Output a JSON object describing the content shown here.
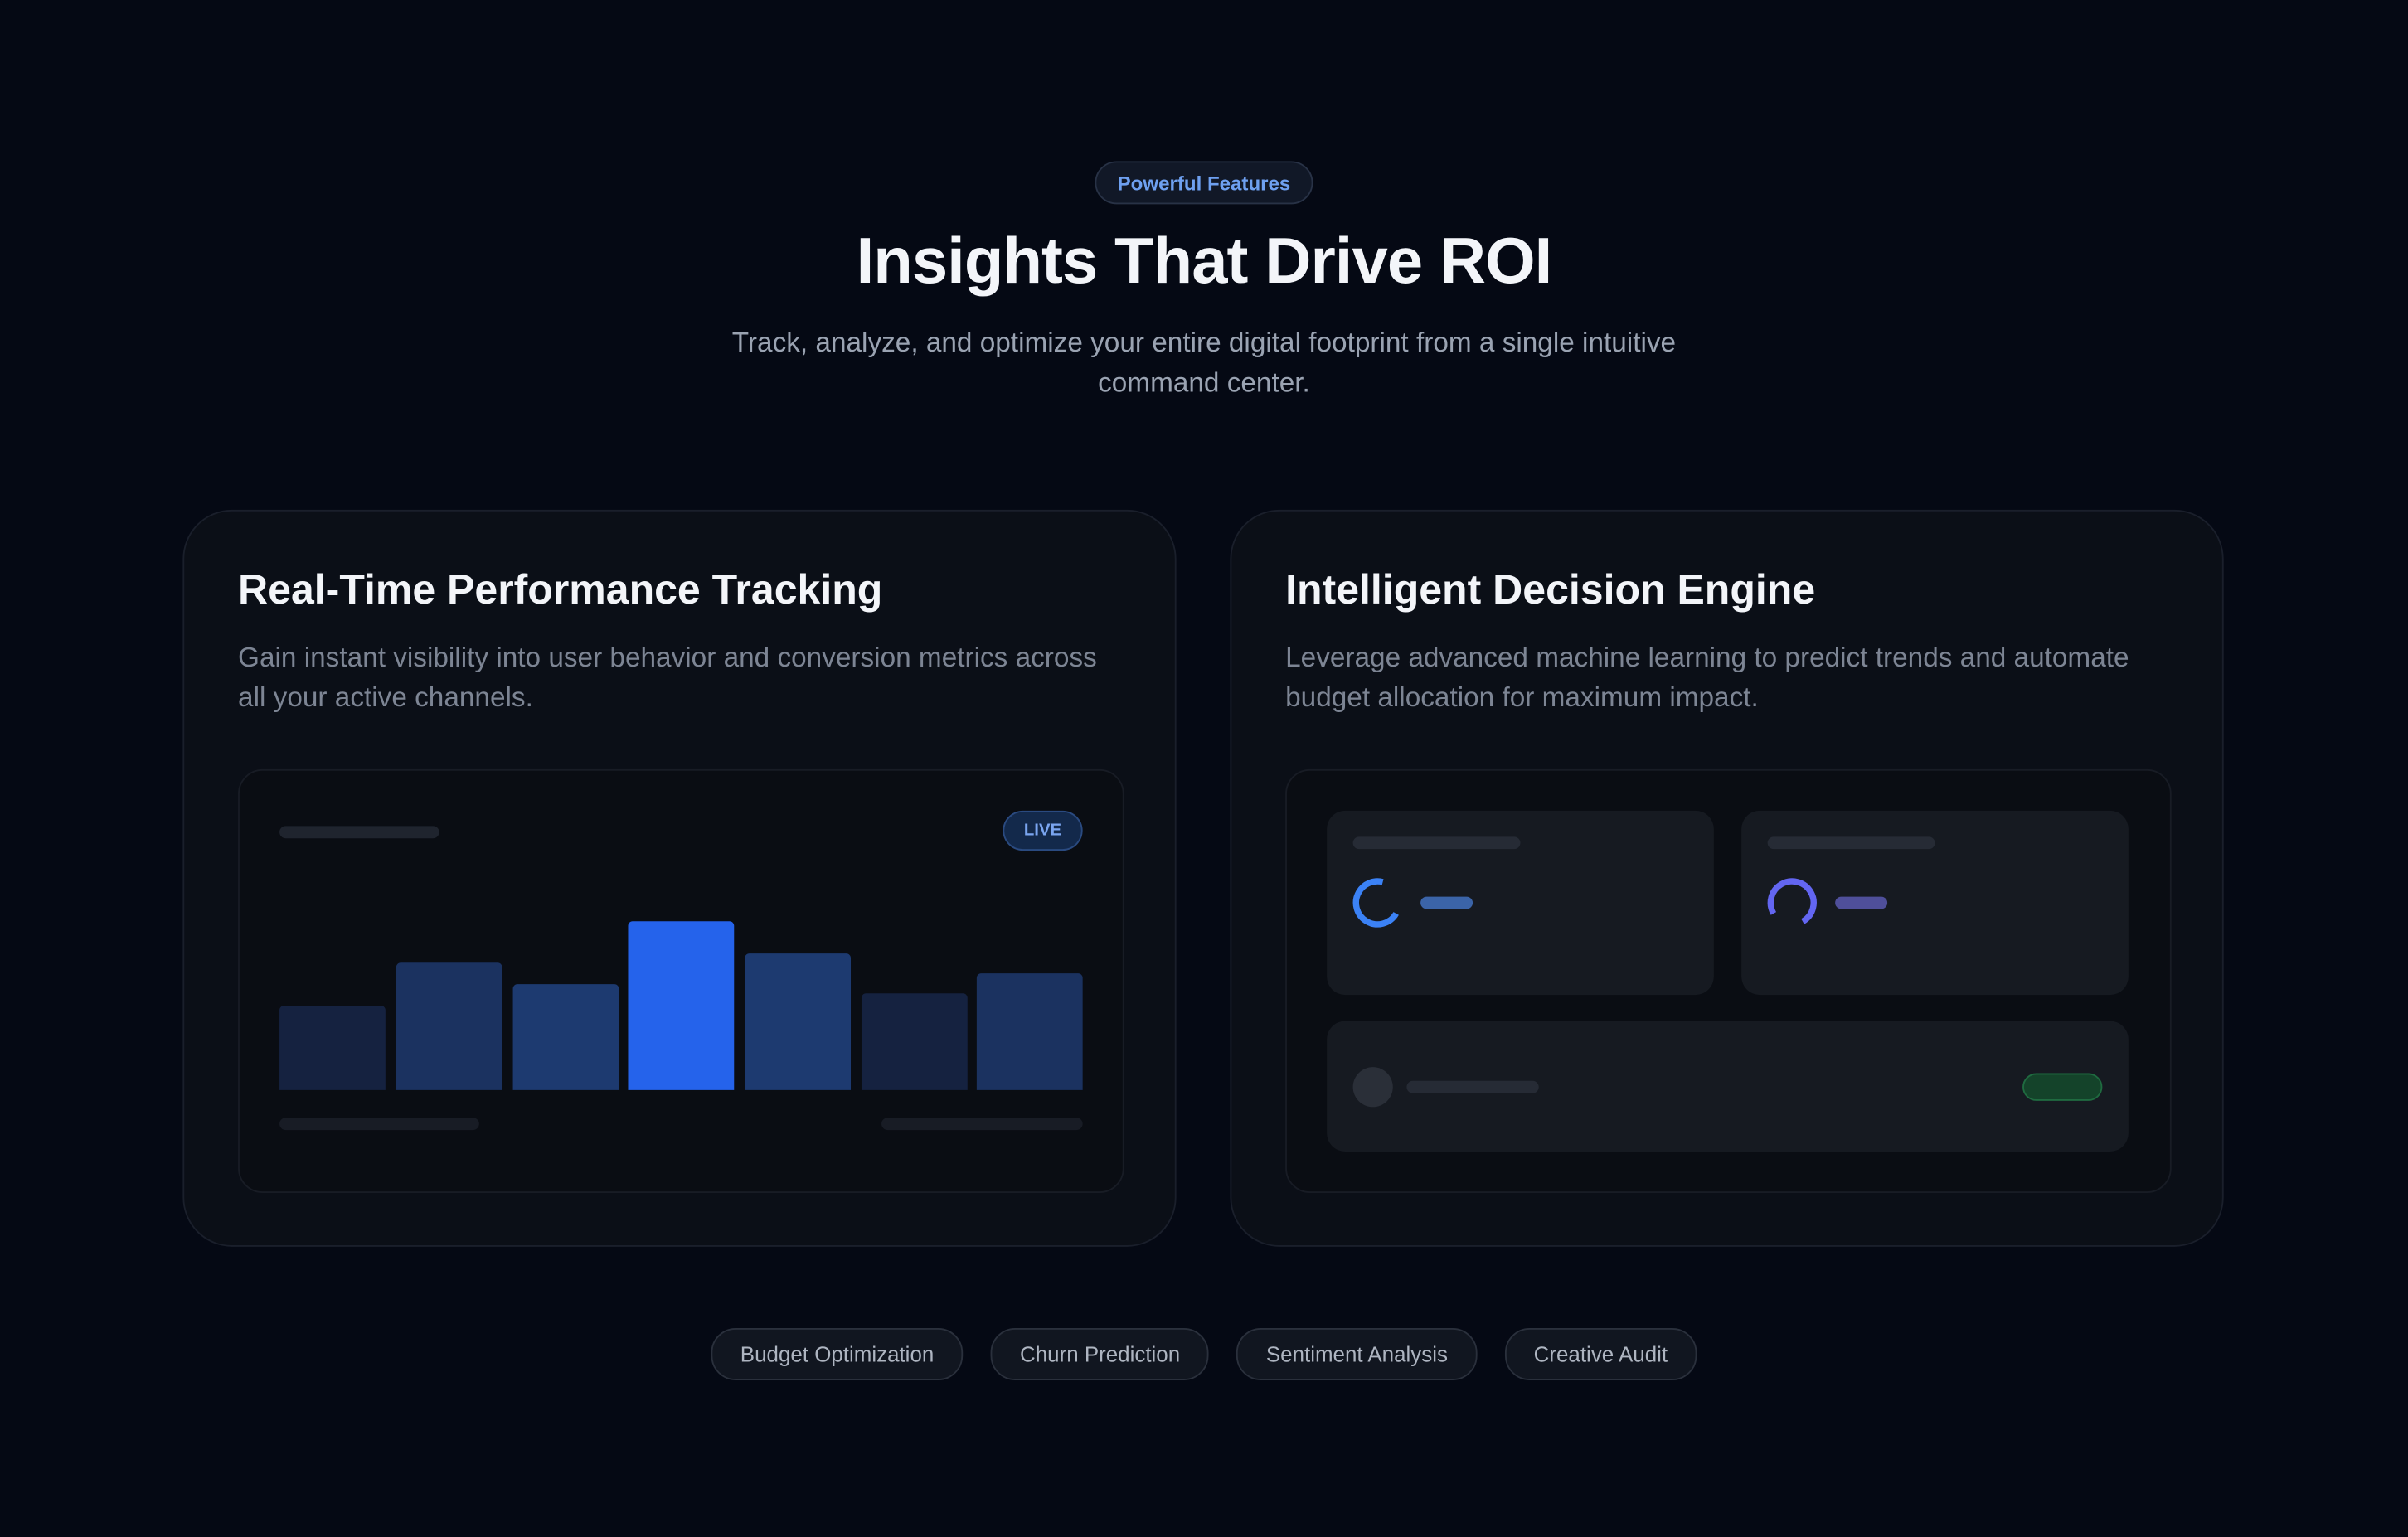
{
  "header": {
    "badge": "Powerful Features",
    "title": "Insights That Drive ROI",
    "subtitle": "Track, analyze, and optimize your entire digital footprint from a single intuitive command center."
  },
  "cards": [
    {
      "title": "Real-Time Performance Tracking",
      "description": "Gain instant visibility into user behavior and conversion metrics across all your active channels.",
      "status": "LIVE"
    },
    {
      "title": "Intelligent Decision Engine",
      "description": "Leverage advanced machine learning to predict trends and automate budget allocation for maximum impact."
    }
  ],
  "tags": [
    "Budget Optimization",
    "Churn Prediction",
    "Sentiment Analysis",
    "Creative Audit"
  ]
}
